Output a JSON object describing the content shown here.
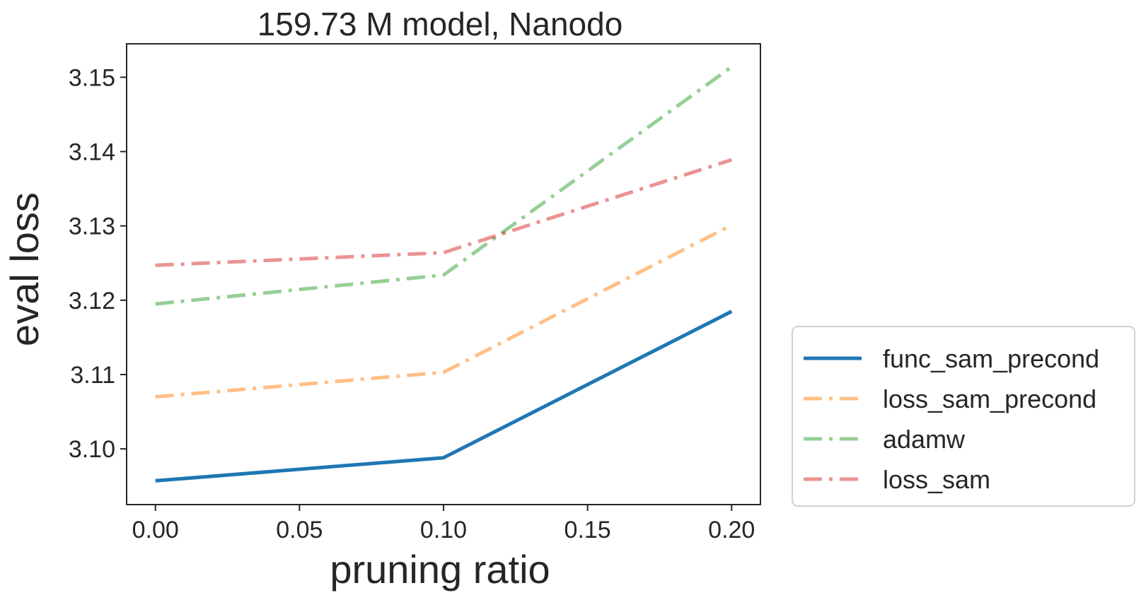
{
  "chart_data": {
    "type": "line",
    "title": "159.73 M model, Nanodo",
    "xlabel": "pruning ratio",
    "ylabel": "eval loss",
    "x": [
      0.0,
      0.1,
      0.2
    ],
    "xlim": [
      -0.01,
      0.21
    ],
    "ylim": [
      3.0925,
      3.1545
    ],
    "xticks": [
      0.0,
      0.05,
      0.1,
      0.15,
      0.2
    ],
    "xtick_labels": [
      "0.00",
      "0.05",
      "0.10",
      "0.15",
      "0.20"
    ],
    "yticks": [
      3.1,
      3.11,
      3.12,
      3.13,
      3.14,
      3.15
    ],
    "ytick_labels": [
      "3.10",
      "3.11",
      "3.12",
      "3.13",
      "3.14",
      "3.15"
    ],
    "legend_position": "outside-right-bottom",
    "series": [
      {
        "name": "func_sam_precond",
        "values": [
          3.0957,
          3.0988,
          3.1185
        ],
        "color": "#1f77b4",
        "style": "solid",
        "opacity": 1.0
      },
      {
        "name": "loss_sam_precond",
        "values": [
          3.107,
          3.1103,
          3.1301
        ],
        "color": "#ff7f0e",
        "style": "dashdot",
        "opacity": 0.5
      },
      {
        "name": "adamw",
        "values": [
          3.1195,
          3.1234,
          3.1514
        ],
        "color": "#2ca02c",
        "style": "dashdot",
        "opacity": 0.5
      },
      {
        "name": "loss_sam",
        "values": [
          3.1247,
          3.1264,
          3.1389
        ],
        "color": "#d62728",
        "style": "dashdot",
        "opacity": 0.5
      }
    ]
  }
}
